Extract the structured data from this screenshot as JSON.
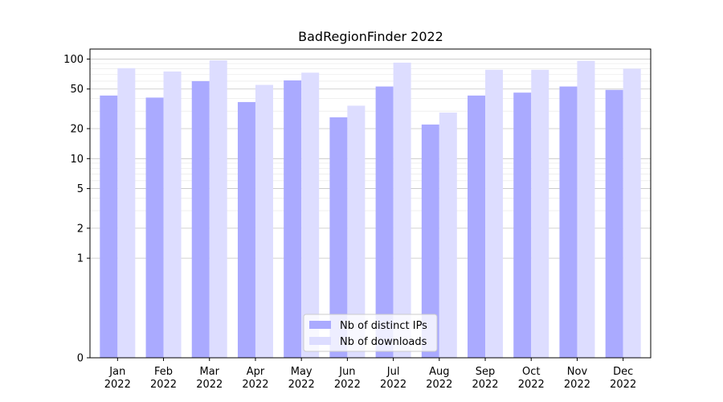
{
  "chart_data": {
    "type": "bar",
    "title": "BadRegionFinder 2022",
    "xlabel": "",
    "ylabel": "",
    "categories": [
      "Jan\n2022",
      "Feb\n2022",
      "Mar\n2022",
      "Apr\n2022",
      "May\n2022",
      "Jun\n2022",
      "Jul\n2022",
      "Aug\n2022",
      "Sep\n2022",
      "Oct\n2022",
      "Nov\n2022",
      "Dec\n2022"
    ],
    "series": [
      {
        "name": "Nb of distinct IPs",
        "color": "#aaaaff",
        "values": [
          43,
          41,
          60,
          37,
          61,
          26,
          53,
          22,
          43,
          46,
          53,
          49
        ]
      },
      {
        "name": "Nb of downloads",
        "color": "#ddddff",
        "values": [
          81,
          75,
          97,
          55,
          73,
          34,
          92,
          29,
          78,
          78,
          96,
          80
        ]
      }
    ],
    "yscale": "symlog",
    "ylim": [
      0,
      126
    ],
    "yticks": [
      0,
      1,
      2,
      5,
      10,
      20,
      50,
      100
    ],
    "grid": true,
    "legend_position": "lower-center"
  }
}
